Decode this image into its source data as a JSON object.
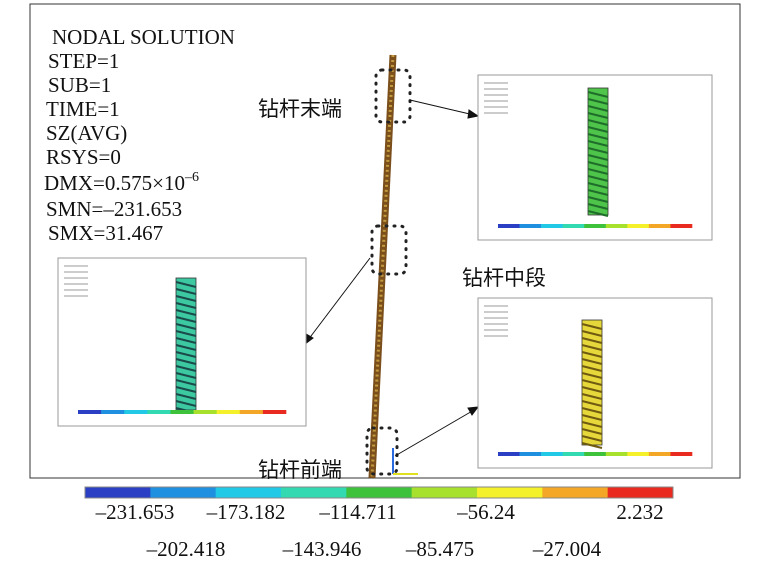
{
  "info": {
    "lines": [
      "NODAL SOLUTION",
      "STEP=1",
      "SUB=1",
      "TIME=1",
      "SZ(AVG)",
      "RSYS=0"
    ],
    "dmx": {
      "base": "DMX=0.575×10",
      "exp": "–6"
    },
    "extra": [
      "SMN=–231.653",
      "SMX=31.467"
    ]
  },
  "labels": {
    "end": "钻杆末端",
    "middle": "钻杆中段",
    "front": "钻杆前端"
  },
  "legend": {
    "colors": [
      "#2a3fc4",
      "#1f8fe0",
      "#22c9e6",
      "#33d9b0",
      "#3ec23c",
      "#a8e02e",
      "#f4f02a",
      "#f4a626",
      "#e82a20"
    ],
    "top_labels": [
      "–231.653",
      "–173.182",
      "–114.711",
      "–56.24",
      "2.232"
    ],
    "bottom_labels": [
      "–202.418",
      "–143.946",
      "–85.475",
      "–27.004"
    ]
  }
}
